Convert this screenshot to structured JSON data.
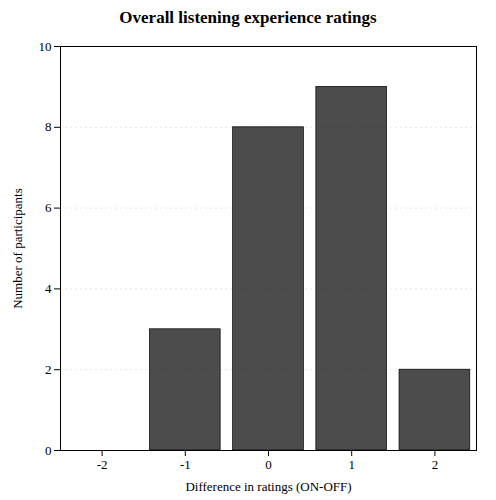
{
  "chart_data": {
    "type": "bar",
    "title": "Overall listening experience ratings",
    "xlabel": "Difference in ratings (ON-OFF)",
    "ylabel": "Number of participants",
    "x": [
      -2,
      -1,
      0,
      1,
      2
    ],
    "values": [
      0,
      3,
      8,
      9,
      2
    ],
    "xlim": [
      -2.5,
      2.5
    ],
    "xticks": [
      -2,
      -1,
      0,
      1,
      2
    ],
    "ylim": [
      0,
      10
    ],
    "yticks": [
      0,
      2,
      4,
      6,
      8,
      10
    ],
    "grid": true
  }
}
